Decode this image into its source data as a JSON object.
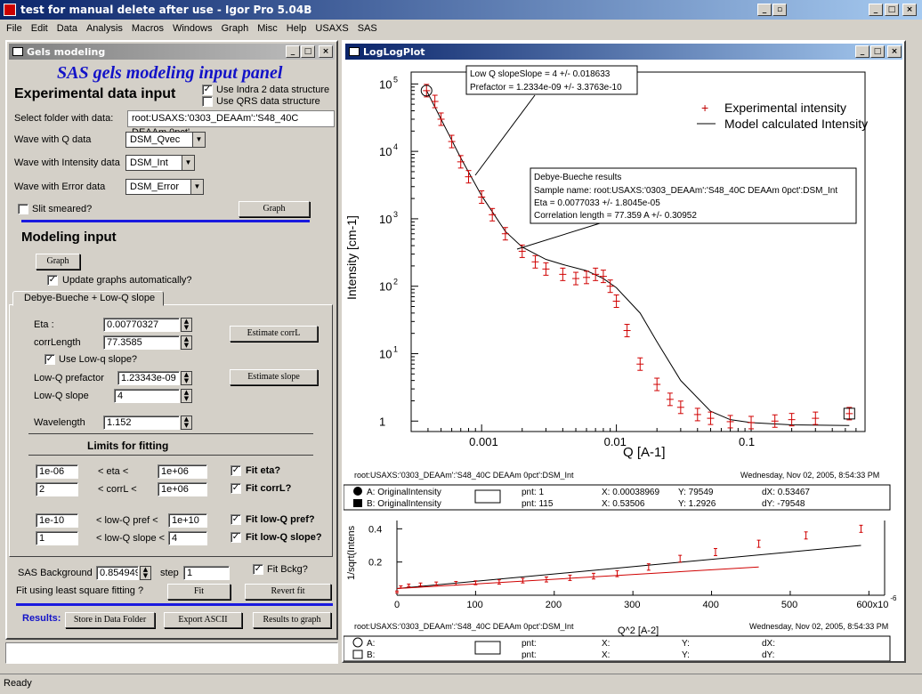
{
  "app": {
    "title": "test for manual delete after use - Igor Pro 5.04B",
    "status": "Ready"
  },
  "menu": [
    "File",
    "Edit",
    "Data",
    "Analysis",
    "Macros",
    "Windows",
    "Graph",
    "Misc",
    "Help",
    "USAXS",
    "SAS"
  ],
  "gels": {
    "window_title": "Gels modeling",
    "panel_title": "SAS gels modeling input panel",
    "exp_heading": "Experimental data input",
    "use_indra": "Use Indra 2 data structure",
    "use_qrs": "Use QRS data structure",
    "select_folder_label": "Select folder with data:",
    "folder_value": "root:USAXS:'0303_DEAAm':'S48_40C DEAAm 0pct'",
    "wave_q_label": "Wave with Q data",
    "wave_q_value": "DSM_Qvec",
    "wave_int_label": "Wave with Intensity data",
    "wave_int_value": "DSM_Int",
    "wave_err_label": "Wave with Error data",
    "wave_err_value": "DSM_Error",
    "slit_smeared": "Slit smeared?",
    "graph_btn": "Graph",
    "modeling_heading": "Modeling input",
    "graph_btn2": "Graph",
    "update_graphs": "Update graphs automatically?",
    "tab_label": "Debye-Bueche + Low-Q slope",
    "eta_label": "Eta :",
    "eta_value": "0.00770327",
    "corr_label": "corrLength",
    "corr_value": "77.3585",
    "estimate_corr_btn": "Estimate corrL",
    "use_lowq": "Use Low-q slope?",
    "lowq_pref_label": "Low-Q prefactor",
    "lowq_pref_value": "1.23343e-09",
    "lowq_slope_label": "Low-Q slope",
    "lowq_slope_value": "4",
    "estimate_slope_btn": "Estimate slope",
    "wavelength_label": "Wavelength",
    "wavelength_value": "1.152",
    "limits_heading": "Limits for fitting",
    "lim_eta_lo": "1e-06",
    "lim_eta_mid": "< eta <",
    "lim_eta_hi": "1e+06",
    "fit_eta": "Fit eta?",
    "lim_corr_lo": "2",
    "lim_corr_mid": "< corrL <",
    "lim_corr_hi": "1e+06",
    "fit_corr": "Fit corrL?",
    "lim_pref_lo": "1e-10",
    "lim_pref_mid": "< low-Q pref <",
    "lim_pref_hi": "1e+10",
    "fit_pref": "Fit low-Q pref?",
    "lim_slope_lo": "1",
    "lim_slope_mid": "< low-Q slope <",
    "lim_slope_hi": "4",
    "fit_slope": "Fit low-Q slope?",
    "bkg_label": "SAS Background",
    "bkg_value": "0.854949",
    "step_label": "step",
    "step_value": "1",
    "fit_bckg": "Fit Bckg?",
    "fit_label": "Fit using least square fitting ?",
    "fit_btn": "Fit",
    "revert_btn": "Revert fit",
    "results_label": "Results:",
    "store_btn": "Store in Data Folder",
    "export_btn": "Export ASCII",
    "results_graph_btn": "Results to graph"
  },
  "plot": {
    "window_title": "LogLogPlot",
    "ylabel": "Intensity [cm-1]",
    "xlabel": "Q [A-1]",
    "footer_left": "root:USAXS:'0303_DEAAm':'S48_40C DEAAm 0pct':DSM_Int",
    "footer_right": "Wednesday, Nov 02, 2005, 8:54:33 PM",
    "legend": [
      "Experimental intensity",
      "Model calculated Intensity"
    ],
    "annot1": [
      "Low Q slopeSlope = 4 +/- 0.018633",
      "Prefactor = 1.2334e-09 +/- 3.3763e-10"
    ],
    "annot2": [
      "Debye-Bueche results",
      "Sample name: root:USAXS:'0303_DEAAm':'S48_40C DEAAm 0pct':DSM_Int",
      "Eta = 0.0077033 +/- 1.8045e-05",
      "Correlation length = 77.359 A +/- 0.30952"
    ],
    "y_ticks": [
      "10",
      "10",
      "10",
      "10",
      "10",
      "1"
    ],
    "y_exps": [
      "5",
      "4",
      "3",
      "2",
      "1",
      ""
    ],
    "x_ticks": [
      "0.001",
      "0.01",
      "0.1"
    ],
    "cursor_a": "A: OriginalIntensity",
    "cursor_b": "B: OriginalIntensity",
    "pnt_a": "pnt: 1",
    "x_a": "X: 0.00038969",
    "y_a": "Y: 79549",
    "dx": "dX: 0.53467",
    "pnt_b": "pnt: 115",
    "x_b": "X: 0.53506",
    "y_b": "Y: 1.2926",
    "dy": "dY: -79548"
  },
  "plot2": {
    "ylabel": "1/sqrt(Intens",
    "xlabel": "Q^2 [A-2]",
    "y_ticks": [
      "0.4",
      "0.2"
    ],
    "x_ticks": [
      "0",
      "100",
      "200",
      "300",
      "400",
      "500",
      "600x10"
    ],
    "x_exp": "-6",
    "footer_left": "root:USAXS:'0303_DEAAm':'S48_40C DEAAm 0pct':DSM_Int",
    "footer_right": "Wednesday, Nov 02, 2005, 8:54:33 PM",
    "cursor_a": "A:",
    "cursor_b": "B:",
    "pnt": "pnt:",
    "x": "X:",
    "y": "Y:",
    "dx": "dX:",
    "dy": "dY:"
  },
  "chart_data": [
    {
      "type": "scatter",
      "xscale": "log",
      "yscale": "log",
      "xlim": [
        0.0003,
        0.7
      ],
      "ylim": [
        0.7,
        150000
      ],
      "xlabel": "Q [A-1]",
      "ylabel": "Intensity [cm-1]",
      "series": [
        {
          "name": "Experimental intensity",
          "x": [
            0.00039,
            0.00045,
            0.0005,
            0.0006,
            0.0007,
            0.0008,
            0.001,
            0.0012,
            0.0015,
            0.002,
            0.0025,
            0.003,
            0.004,
            0.005,
            0.006,
            0.007,
            0.008,
            0.009,
            0.01,
            0.012,
            0.015,
            0.02,
            0.025,
            0.03,
            0.04,
            0.05,
            0.07,
            0.1,
            0.15,
            0.2,
            0.3,
            0.535
          ],
          "y": [
            79549,
            55000,
            30000,
            14000,
            7000,
            4200,
            2100,
            1150,
            600,
            330,
            230,
            180,
            150,
            130,
            135,
            150,
            140,
            100,
            60,
            22,
            7,
            3.5,
            2.1,
            1.6,
            1.25,
            1.1,
            0.98,
            0.95,
            1.0,
            1.05,
            1.1,
            1.29
          ]
        },
        {
          "name": "Model calculated Intensity",
          "x": [
            0.00039,
            0.0005,
            0.0007,
            0.001,
            0.0015,
            0.002,
            0.003,
            0.004,
            0.006,
            0.008,
            0.01,
            0.015,
            0.02,
            0.03,
            0.05,
            0.07,
            0.1,
            0.2,
            0.535
          ],
          "y": [
            80000,
            30000,
            8000,
            2200,
            650,
            380,
            250,
            210,
            170,
            130,
            95,
            40,
            15,
            4,
            1.4,
            1.05,
            0.95,
            0.88,
            0.86
          ]
        }
      ]
    },
    {
      "type": "scatter",
      "xlim": [
        0,
        620
      ],
      "ylim": [
        0,
        0.45
      ],
      "xlabel": "Q^2 [A-2]",
      "ylabel": "1/sqrt(Intens",
      "series": [
        {
          "name": "",
          "x": [
            0,
            5,
            15,
            30,
            50,
            75,
            100,
            130,
            160,
            190,
            220,
            250,
            280,
            320,
            360,
            405,
            460,
            520,
            590
          ],
          "y": [
            0.02,
            0.05,
            0.06,
            0.065,
            0.07,
            0.072,
            0.075,
            0.08,
            0.088,
            0.095,
            0.105,
            0.115,
            0.13,
            0.17,
            0.22,
            0.26,
            0.31,
            0.36,
            0.4
          ]
        },
        {
          "name": "",
          "x": [
            0,
            590
          ],
          "y": [
            0.04,
            0.3
          ]
        },
        {
          "name": "",
          "x": [
            0,
            460
          ],
          "y": [
            0.04,
            0.17
          ]
        }
      ]
    }
  ]
}
